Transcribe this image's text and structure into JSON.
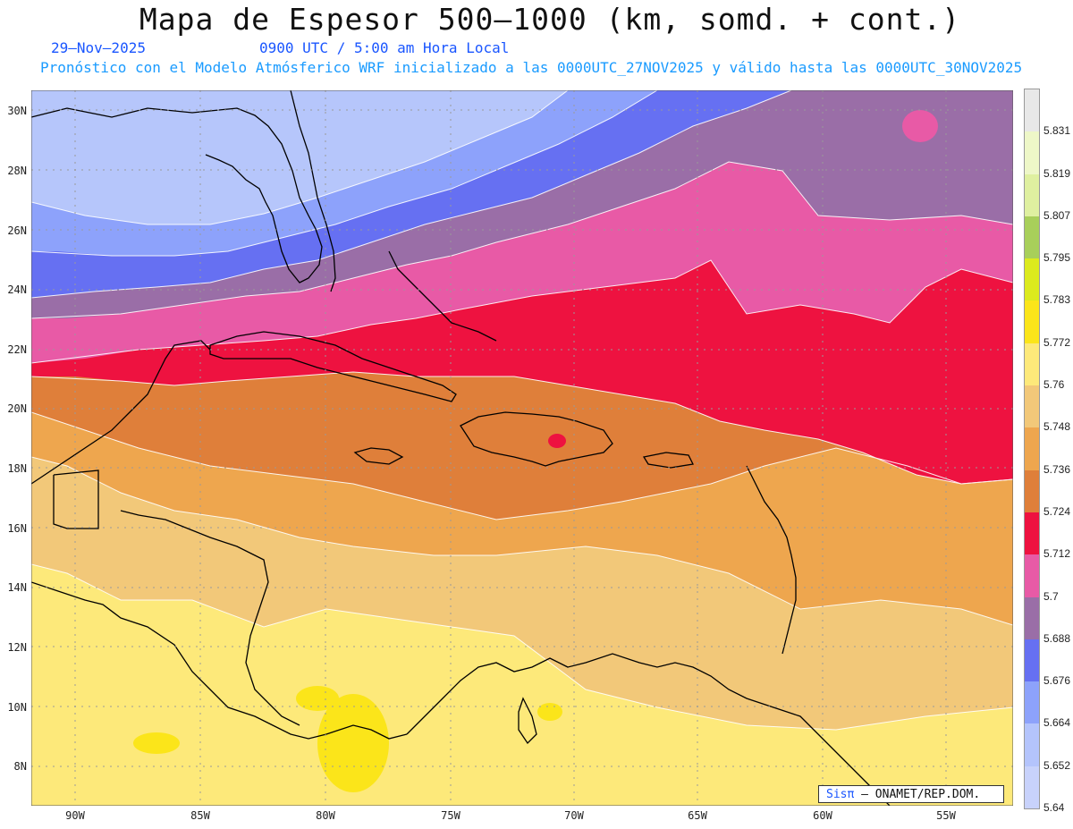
{
  "title": "Mapa de Espesor 500—1000 (km, somd. + cont.)",
  "date": "29—Nov—2025",
  "time": "0900 UTC / 5:00 am Hora Local",
  "model_line": "Pronóstico con el Modelo Atmósferico WRF inicializado a las 0000UTC_27NOV2025 y válido hasta las  0000UTC_30NOV2025",
  "credit": {
    "prefix": "Sisπ",
    "text": " — ONAMET/REP.DOM."
  },
  "lat_labels": [
    "30N",
    "28N",
    "26N",
    "24N",
    "22N",
    "20N",
    "18N",
    "16N",
    "14N",
    "12N",
    "10N",
    "8N"
  ],
  "lon_labels": [
    "90W",
    "85W",
    "80W",
    "75W",
    "70W",
    "65W",
    "60W",
    "55W"
  ],
  "colorbar": {
    "labels": [
      "5.831",
      "5.819",
      "5.807",
      "5.795",
      "5.783",
      "5.772",
      "5.76",
      "5.748",
      "5.736",
      "5.724",
      "5.712",
      "5.7",
      "5.688",
      "5.676",
      "5.664",
      "5.652",
      "5.64"
    ],
    "colors_top_to_bottom": [
      "#e8e8e8",
      "#eef7c8",
      "#dff0a0",
      "#a8cf5a",
      "#dcea1e",
      "#fbe51a",
      "#fde97a",
      "#f2c879",
      "#eea64e",
      "#df7f3a",
      "#ee1240",
      "#e85aa6",
      "#9a6ea7",
      "#6670f2",
      "#8da2fb",
      "#b4c4fc",
      "#c8d2fb"
    ]
  },
  "colors": {
    "bg_band_light_blue": "#b6c6fb",
    "title_blue": "#1a56ff",
    "subtitle_blue": "#1a9bff"
  }
}
